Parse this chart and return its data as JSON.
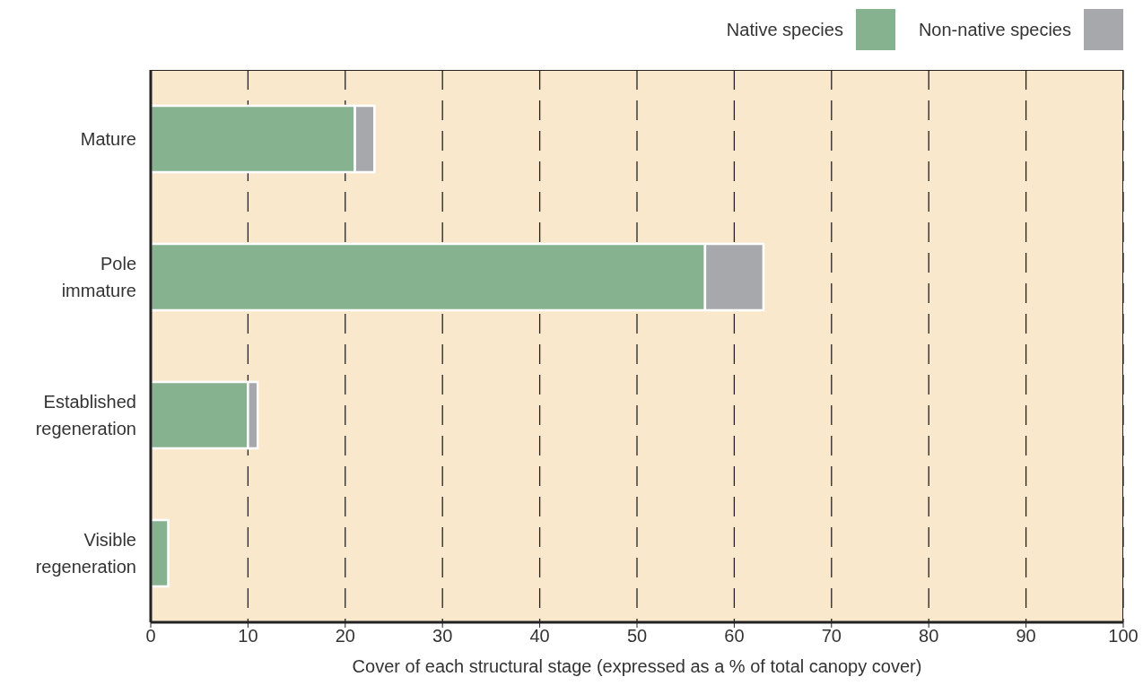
{
  "chart_data": {
    "type": "bar",
    "orientation": "horizontal",
    "stacked": true,
    "xlabel": "Cover of each structural stage (expressed as a % of total canopy cover)",
    "categories": [
      "Mature",
      "Pole immature",
      "Established regeneration",
      "Visible regeneration"
    ],
    "series": [
      {
        "name": "Native species",
        "color": "#86b290",
        "values": [
          21,
          57,
          10,
          1.8
        ]
      },
      {
        "name": "Non-native species",
        "color": "#a7a8ab",
        "values": [
          2,
          6,
          1,
          0
        ]
      }
    ],
    "xlim": [
      0,
      100
    ],
    "xticks": [
      0,
      10,
      20,
      30,
      40,
      50,
      60,
      70,
      80,
      90,
      100
    ],
    "grid": "x",
    "legend": "top right"
  }
}
